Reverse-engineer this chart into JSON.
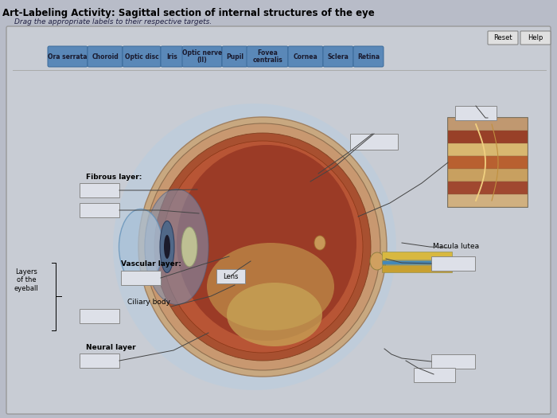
{
  "title": "Art-Labeling Activity: Sagittal section of internal structures of the eye",
  "subtitle": "Drag the appropriate labels to their respective targets.",
  "bg_color": "#c4c8d0",
  "outer_bg": "#b8bcc8",
  "panel_bg": "#c8ccd4",
  "label_buttons": [
    "Ora serrata",
    "Choroid",
    "Optic disc",
    "Iris",
    "Optic nerve\n(II)",
    "Pupil",
    "Fovea\ncentralis",
    "Cornea",
    "Sclera",
    "Retina"
  ],
  "btn_color": "#5a88b8",
  "btn_text_color": "#1a1a2e",
  "reset_help_color": "#e0e0e0",
  "fibrous_label": "Fibrous layer:",
  "vascular_label": "Vascular layer:",
  "ciliary_label": "Ciliary body",
  "neural_label": "Neural layer",
  "layers_label": "Layers\nof the\neyeball",
  "lens_label": "Lens",
  "macula_label": "Macula lutea",
  "empty_box_color": "#dde0e8",
  "empty_box_border": "#888888",
  "line_color": "#444444"
}
